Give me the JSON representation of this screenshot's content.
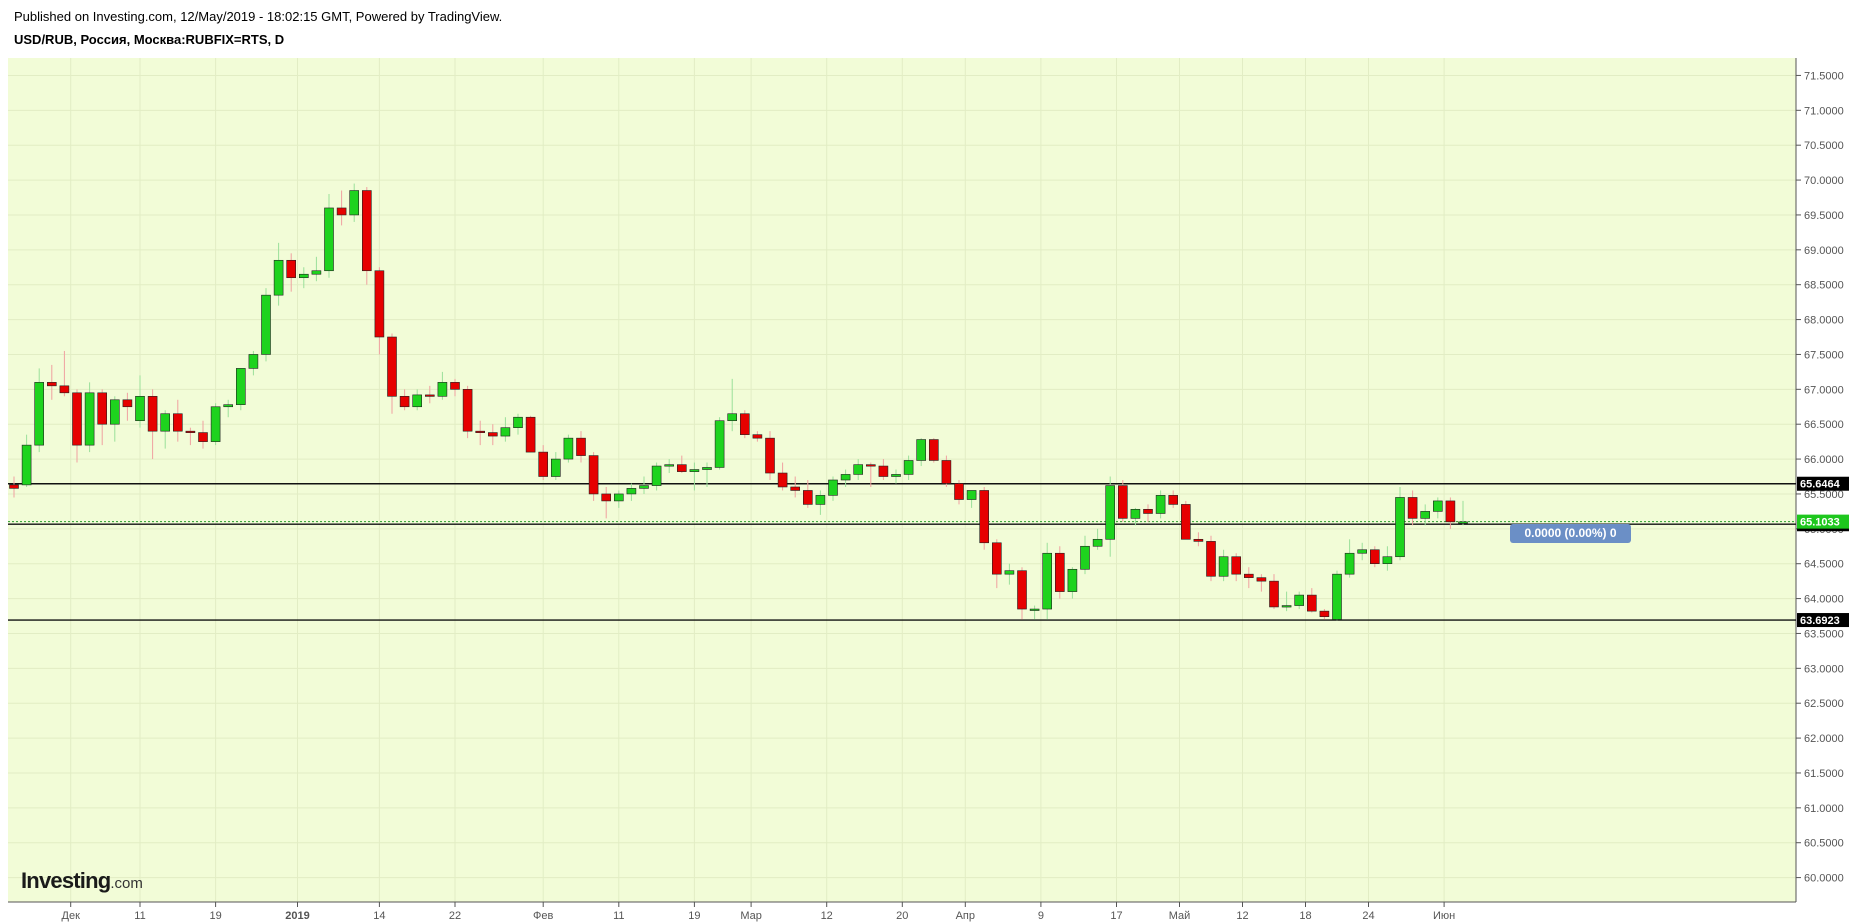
{
  "header": {
    "published_line": "Published on Investing.com, 12/May/2019 - 18:02:15 GMT, Powered by TradingView.",
    "symbol_line": "USD/RUB, Россия, Москва:RUBFIX=RTS, D"
  },
  "logo": {
    "brand": "Investing",
    "suffix": ".com"
  },
  "change_badge": "0.0000 (0.00%) 0",
  "colors": {
    "background": "#f2fcd7",
    "up": "#1ed31e",
    "down": "#e60000",
    "last_price_tag": "#1ec71e",
    "level_tag": "#000000",
    "badge": "#6b8fc6"
  },
  "chart_data": {
    "type": "candlestick",
    "title": "USD/RUB, Россия, Москва:RUBFIX=RTS, D",
    "ylim": [
      59.65,
      71.75
    ],
    "y_ticks": [
      "71.5000",
      "71.0000",
      "70.5000",
      "70.0000",
      "69.5000",
      "69.0000",
      "68.5000",
      "68.0000",
      "67.5000",
      "67.0000",
      "66.5000",
      "66.0000",
      "65.5000",
      "65.0000",
      "64.5000",
      "64.0000",
      "63.5000",
      "63.0000",
      "62.5000",
      "62.0000",
      "61.5000",
      "61.0000",
      "60.5000",
      "60.0000"
    ],
    "x_ticks": [
      "Дек",
      "11",
      "19",
      "2019",
      "14",
      "22",
      "Фев",
      "11",
      "19",
      "Мар",
      "12",
      "20",
      "Апр",
      "9",
      "17",
      "Май",
      "12",
      "18",
      "24",
      "Июн"
    ],
    "horizontal_levels": [
      {
        "value": 65.6464,
        "label": "65.6464"
      },
      {
        "value": 65.0658,
        "label": "65.0658"
      },
      {
        "value": 63.6923,
        "label": "63.6923"
      }
    ],
    "last_price": {
      "value": 65.1033,
      "label": "65.1033"
    },
    "grid": true,
    "candles": [
      {
        "o": 65.63,
        "h": 65.75,
        "l": 65.45,
        "c": 65.58
      },
      {
        "o": 65.63,
        "h": 66.35,
        "l": 65.6,
        "c": 66.2
      },
      {
        "o": 66.2,
        "h": 67.3,
        "l": 66.1,
        "c": 67.1
      },
      {
        "o": 67.1,
        "h": 67.35,
        "l": 66.85,
        "c": 67.05
      },
      {
        "o": 67.05,
        "h": 67.55,
        "l": 66.9,
        "c": 66.95
      },
      {
        "o": 66.95,
        "h": 67.0,
        "l": 65.95,
        "c": 66.2
      },
      {
        "o": 66.2,
        "h": 67.1,
        "l": 66.1,
        "c": 66.95
      },
      {
        "o": 66.95,
        "h": 67.0,
        "l": 66.2,
        "c": 66.5
      },
      {
        "o": 66.5,
        "h": 66.9,
        "l": 66.25,
        "c": 66.85
      },
      {
        "o": 66.85,
        "h": 66.95,
        "l": 66.55,
        "c": 66.75
      },
      {
        "o": 66.55,
        "h": 67.2,
        "l": 66.45,
        "c": 66.9
      },
      {
        "o": 66.9,
        "h": 67.0,
        "l": 66.0,
        "c": 66.4
      },
      {
        "o": 66.4,
        "h": 66.7,
        "l": 66.15,
        "c": 66.65
      },
      {
        "o": 66.65,
        "h": 66.85,
        "l": 66.25,
        "c": 66.4
      },
      {
        "o": 66.4,
        "h": 66.45,
        "l": 66.2,
        "c": 66.38
      },
      {
        "o": 66.38,
        "h": 66.55,
        "l": 66.15,
        "c": 66.25
      },
      {
        "o": 66.25,
        "h": 66.8,
        "l": 66.2,
        "c": 66.75
      },
      {
        "o": 66.75,
        "h": 66.85,
        "l": 66.6,
        "c": 66.78
      },
      {
        "o": 66.78,
        "h": 67.3,
        "l": 66.7,
        "c": 67.3
      },
      {
        "o": 67.3,
        "h": 67.55,
        "l": 67.2,
        "c": 67.5
      },
      {
        "o": 67.5,
        "h": 68.45,
        "l": 67.4,
        "c": 68.35
      },
      {
        "o": 68.35,
        "h": 69.1,
        "l": 68.2,
        "c": 68.85
      },
      {
        "o": 68.85,
        "h": 68.95,
        "l": 68.4,
        "c": 68.6
      },
      {
        "o": 68.6,
        "h": 68.75,
        "l": 68.45,
        "c": 68.65
      },
      {
        "o": 68.65,
        "h": 68.9,
        "l": 68.55,
        "c": 68.7
      },
      {
        "o": 68.7,
        "h": 69.8,
        "l": 68.6,
        "c": 69.6
      },
      {
        "o": 69.6,
        "h": 69.85,
        "l": 69.35,
        "c": 69.5
      },
      {
        "o": 69.5,
        "h": 69.95,
        "l": 69.4,
        "c": 69.85
      },
      {
        "o": 69.85,
        "h": 69.9,
        "l": 68.5,
        "c": 68.7
      },
      {
        "o": 68.7,
        "h": 68.75,
        "l": 67.5,
        "c": 67.75
      },
      {
        "o": 67.75,
        "h": 67.8,
        "l": 66.65,
        "c": 66.9
      },
      {
        "o": 66.9,
        "h": 67.0,
        "l": 66.7,
        "c": 66.75
      },
      {
        "o": 66.75,
        "h": 67.0,
        "l": 66.7,
        "c": 66.92
      },
      {
        "o": 66.92,
        "h": 67.05,
        "l": 66.8,
        "c": 66.9
      },
      {
        "o": 66.9,
        "h": 67.25,
        "l": 66.85,
        "c": 67.1
      },
      {
        "o": 67.1,
        "h": 67.15,
        "l": 66.9,
        "c": 67.0
      },
      {
        "o": 67.0,
        "h": 67.05,
        "l": 66.3,
        "c": 66.4
      },
      {
        "o": 66.4,
        "h": 66.55,
        "l": 66.2,
        "c": 66.38
      },
      {
        "o": 66.38,
        "h": 66.5,
        "l": 66.2,
        "c": 66.33
      },
      {
        "o": 66.33,
        "h": 66.6,
        "l": 66.25,
        "c": 66.45
      },
      {
        "o": 66.45,
        "h": 66.65,
        "l": 66.35,
        "c": 66.6
      },
      {
        "o": 66.6,
        "h": 66.62,
        "l": 66.1,
        "c": 66.1
      },
      {
        "o": 66.1,
        "h": 66.2,
        "l": 65.7,
        "c": 65.75
      },
      {
        "o": 65.75,
        "h": 66.1,
        "l": 65.7,
        "c": 66.0
      },
      {
        "o": 66.0,
        "h": 66.35,
        "l": 65.95,
        "c": 66.3
      },
      {
        "o": 66.3,
        "h": 66.4,
        "l": 65.95,
        "c": 66.05
      },
      {
        "o": 66.05,
        "h": 66.1,
        "l": 65.4,
        "c": 65.5
      },
      {
        "o": 65.5,
        "h": 65.6,
        "l": 65.15,
        "c": 65.4
      },
      {
        "o": 65.4,
        "h": 65.55,
        "l": 65.3,
        "c": 65.5
      },
      {
        "o": 65.5,
        "h": 65.65,
        "l": 65.4,
        "c": 65.58
      },
      {
        "o": 65.58,
        "h": 65.75,
        "l": 65.5,
        "c": 65.62
      },
      {
        "o": 65.62,
        "h": 65.95,
        "l": 65.55,
        "c": 65.9
      },
      {
        "o": 65.9,
        "h": 66.0,
        "l": 65.8,
        "c": 65.92
      },
      {
        "o": 65.92,
        "h": 66.05,
        "l": 65.8,
        "c": 65.82
      },
      {
        "o": 65.82,
        "h": 65.95,
        "l": 65.55,
        "c": 65.85
      },
      {
        "o": 65.85,
        "h": 65.95,
        "l": 65.6,
        "c": 65.88
      },
      {
        "o": 65.88,
        "h": 66.6,
        "l": 65.85,
        "c": 66.55
      },
      {
        "o": 66.55,
        "h": 67.15,
        "l": 66.4,
        "c": 66.65
      },
      {
        "o": 66.65,
        "h": 66.7,
        "l": 66.3,
        "c": 66.35
      },
      {
        "o": 66.35,
        "h": 66.4,
        "l": 66.25,
        "c": 66.3
      },
      {
        "o": 66.3,
        "h": 66.4,
        "l": 65.7,
        "c": 65.8
      },
      {
        "o": 65.8,
        "h": 65.95,
        "l": 65.55,
        "c": 65.6
      },
      {
        "o": 65.6,
        "h": 65.75,
        "l": 65.45,
        "c": 65.55
      },
      {
        "o": 65.55,
        "h": 65.7,
        "l": 65.3,
        "c": 65.35
      },
      {
        "o": 65.35,
        "h": 65.55,
        "l": 65.2,
        "c": 65.48
      },
      {
        "o": 65.48,
        "h": 65.75,
        "l": 65.4,
        "c": 65.7
      },
      {
        "o": 65.7,
        "h": 65.85,
        "l": 65.6,
        "c": 65.78
      },
      {
        "o": 65.78,
        "h": 66.0,
        "l": 65.7,
        "c": 65.92
      },
      {
        "o": 65.92,
        "h": 65.95,
        "l": 65.6,
        "c": 65.9
      },
      {
        "o": 65.9,
        "h": 66.0,
        "l": 65.7,
        "c": 65.75
      },
      {
        "o": 65.75,
        "h": 65.85,
        "l": 65.65,
        "c": 65.78
      },
      {
        "o": 65.78,
        "h": 66.05,
        "l": 65.7,
        "c": 65.98
      },
      {
        "o": 65.98,
        "h": 66.3,
        "l": 65.9,
        "c": 66.28
      },
      {
        "o": 66.28,
        "h": 66.3,
        "l": 65.95,
        "c": 65.98
      },
      {
        "o": 65.98,
        "h": 66.05,
        "l": 65.6,
        "c": 65.65
      },
      {
        "o": 65.65,
        "h": 65.7,
        "l": 65.35,
        "c": 65.42
      },
      {
        "o": 65.42,
        "h": 65.55,
        "l": 65.3,
        "c": 65.55
      },
      {
        "o": 65.55,
        "h": 65.6,
        "l": 64.7,
        "c": 64.8
      },
      {
        "o": 64.8,
        "h": 64.85,
        "l": 64.15,
        "c": 64.35
      },
      {
        "o": 64.35,
        "h": 64.5,
        "l": 64.2,
        "c": 64.4
      },
      {
        "o": 64.4,
        "h": 64.45,
        "l": 63.7,
        "c": 63.85
      },
      {
        "o": 63.85,
        "h": 63.9,
        "l": 63.7,
        "c": 63.85
      },
      {
        "o": 63.85,
        "h": 64.8,
        "l": 63.7,
        "c": 64.65
      },
      {
        "o": 64.65,
        "h": 64.75,
        "l": 64.0,
        "c": 64.1
      },
      {
        "o": 64.1,
        "h": 64.45,
        "l": 64.0,
        "c": 64.42
      },
      {
        "o": 64.42,
        "h": 64.9,
        "l": 64.35,
        "c": 64.75
      },
      {
        "o": 64.75,
        "h": 65.0,
        "l": 64.7,
        "c": 64.85
      },
      {
        "o": 64.85,
        "h": 65.75,
        "l": 64.6,
        "c": 65.62
      },
      {
        "o": 65.62,
        "h": 65.7,
        "l": 65.1,
        "c": 65.15
      },
      {
        "o": 65.15,
        "h": 65.3,
        "l": 65.05,
        "c": 65.28
      },
      {
        "o": 65.28,
        "h": 65.35,
        "l": 65.1,
        "c": 65.22
      },
      {
        "o": 65.22,
        "h": 65.55,
        "l": 65.15,
        "c": 65.48
      },
      {
        "o": 65.48,
        "h": 65.55,
        "l": 65.3,
        "c": 65.35
      },
      {
        "o": 65.35,
        "h": 65.4,
        "l": 64.85,
        "c": 64.85
      },
      {
        "o": 64.85,
        "h": 64.95,
        "l": 64.75,
        "c": 64.82
      },
      {
        "o": 64.82,
        "h": 64.9,
        "l": 64.25,
        "c": 64.32
      },
      {
        "o": 64.32,
        "h": 64.7,
        "l": 64.25,
        "c": 64.6
      },
      {
        "o": 64.6,
        "h": 64.65,
        "l": 64.25,
        "c": 64.35
      },
      {
        "o": 64.35,
        "h": 64.45,
        "l": 64.15,
        "c": 64.3
      },
      {
        "o": 64.3,
        "h": 64.35,
        "l": 64.1,
        "c": 64.25
      },
      {
        "o": 64.25,
        "h": 64.35,
        "l": 63.85,
        "c": 63.88
      },
      {
        "o": 63.88,
        "h": 64.1,
        "l": 63.82,
        "c": 63.9
      },
      {
        "o": 63.9,
        "h": 64.1,
        "l": 63.85,
        "c": 64.05
      },
      {
        "o": 64.05,
        "h": 64.15,
        "l": 63.8,
        "c": 63.82
      },
      {
        "o": 63.82,
        "h": 63.85,
        "l": 63.7,
        "c": 63.74
      },
      {
        "o": 63.7,
        "h": 64.4,
        "l": 63.69,
        "c": 64.35
      },
      {
        "o": 64.35,
        "h": 64.85,
        "l": 64.3,
        "c": 64.65
      },
      {
        "o": 64.65,
        "h": 64.8,
        "l": 64.55,
        "c": 64.7
      },
      {
        "o": 64.7,
        "h": 64.75,
        "l": 64.45,
        "c": 64.5
      },
      {
        "o": 64.5,
        "h": 64.75,
        "l": 64.4,
        "c": 64.6
      },
      {
        "o": 64.6,
        "h": 65.6,
        "l": 64.55,
        "c": 65.45
      },
      {
        "o": 65.45,
        "h": 65.55,
        "l": 65.05,
        "c": 65.15
      },
      {
        "o": 65.15,
        "h": 65.35,
        "l": 65.05,
        "c": 65.25
      },
      {
        "o": 65.25,
        "h": 65.45,
        "l": 65.15,
        "c": 65.4
      },
      {
        "o": 65.4,
        "h": 65.45,
        "l": 65.0,
        "c": 65.1
      },
      {
        "o": 65.1,
        "h": 65.4,
        "l": 65.05,
        "c": 65.1
      }
    ]
  }
}
